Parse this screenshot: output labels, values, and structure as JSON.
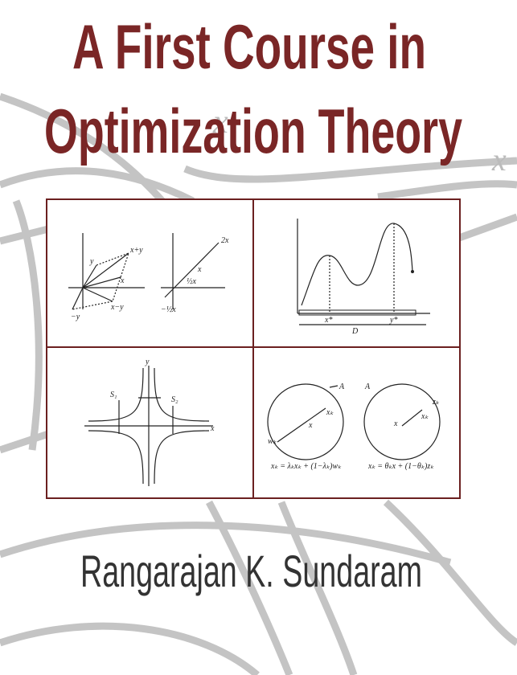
{
  "title": {
    "line1": "A First Course in",
    "line2": "Optimization Theory"
  },
  "author": "Rangarajan K. Sundaram",
  "background_labels": [
    "x",
    "x"
  ],
  "panels": [
    {
      "labels": [
        "x+y",
        "y",
        "x",
        "x−y",
        "−y",
        "2x",
        "x",
        "½x",
        "−½x"
      ]
    },
    {
      "labels": [
        "x*",
        "y*",
        "D"
      ]
    },
    {
      "labels": [
        "y",
        "x",
        "S₁",
        "S₂"
      ]
    },
    {
      "labels": [
        "A",
        "xₖ",
        "x",
        "wₖ",
        "A",
        "zₖ",
        "xₖ",
        "x"
      ],
      "formulas": [
        "xₖ = λₖxₖ + (1−λₖ)wₖ",
        "xₖ = θₖx + (1−θₖ)zₖ"
      ]
    }
  ]
}
